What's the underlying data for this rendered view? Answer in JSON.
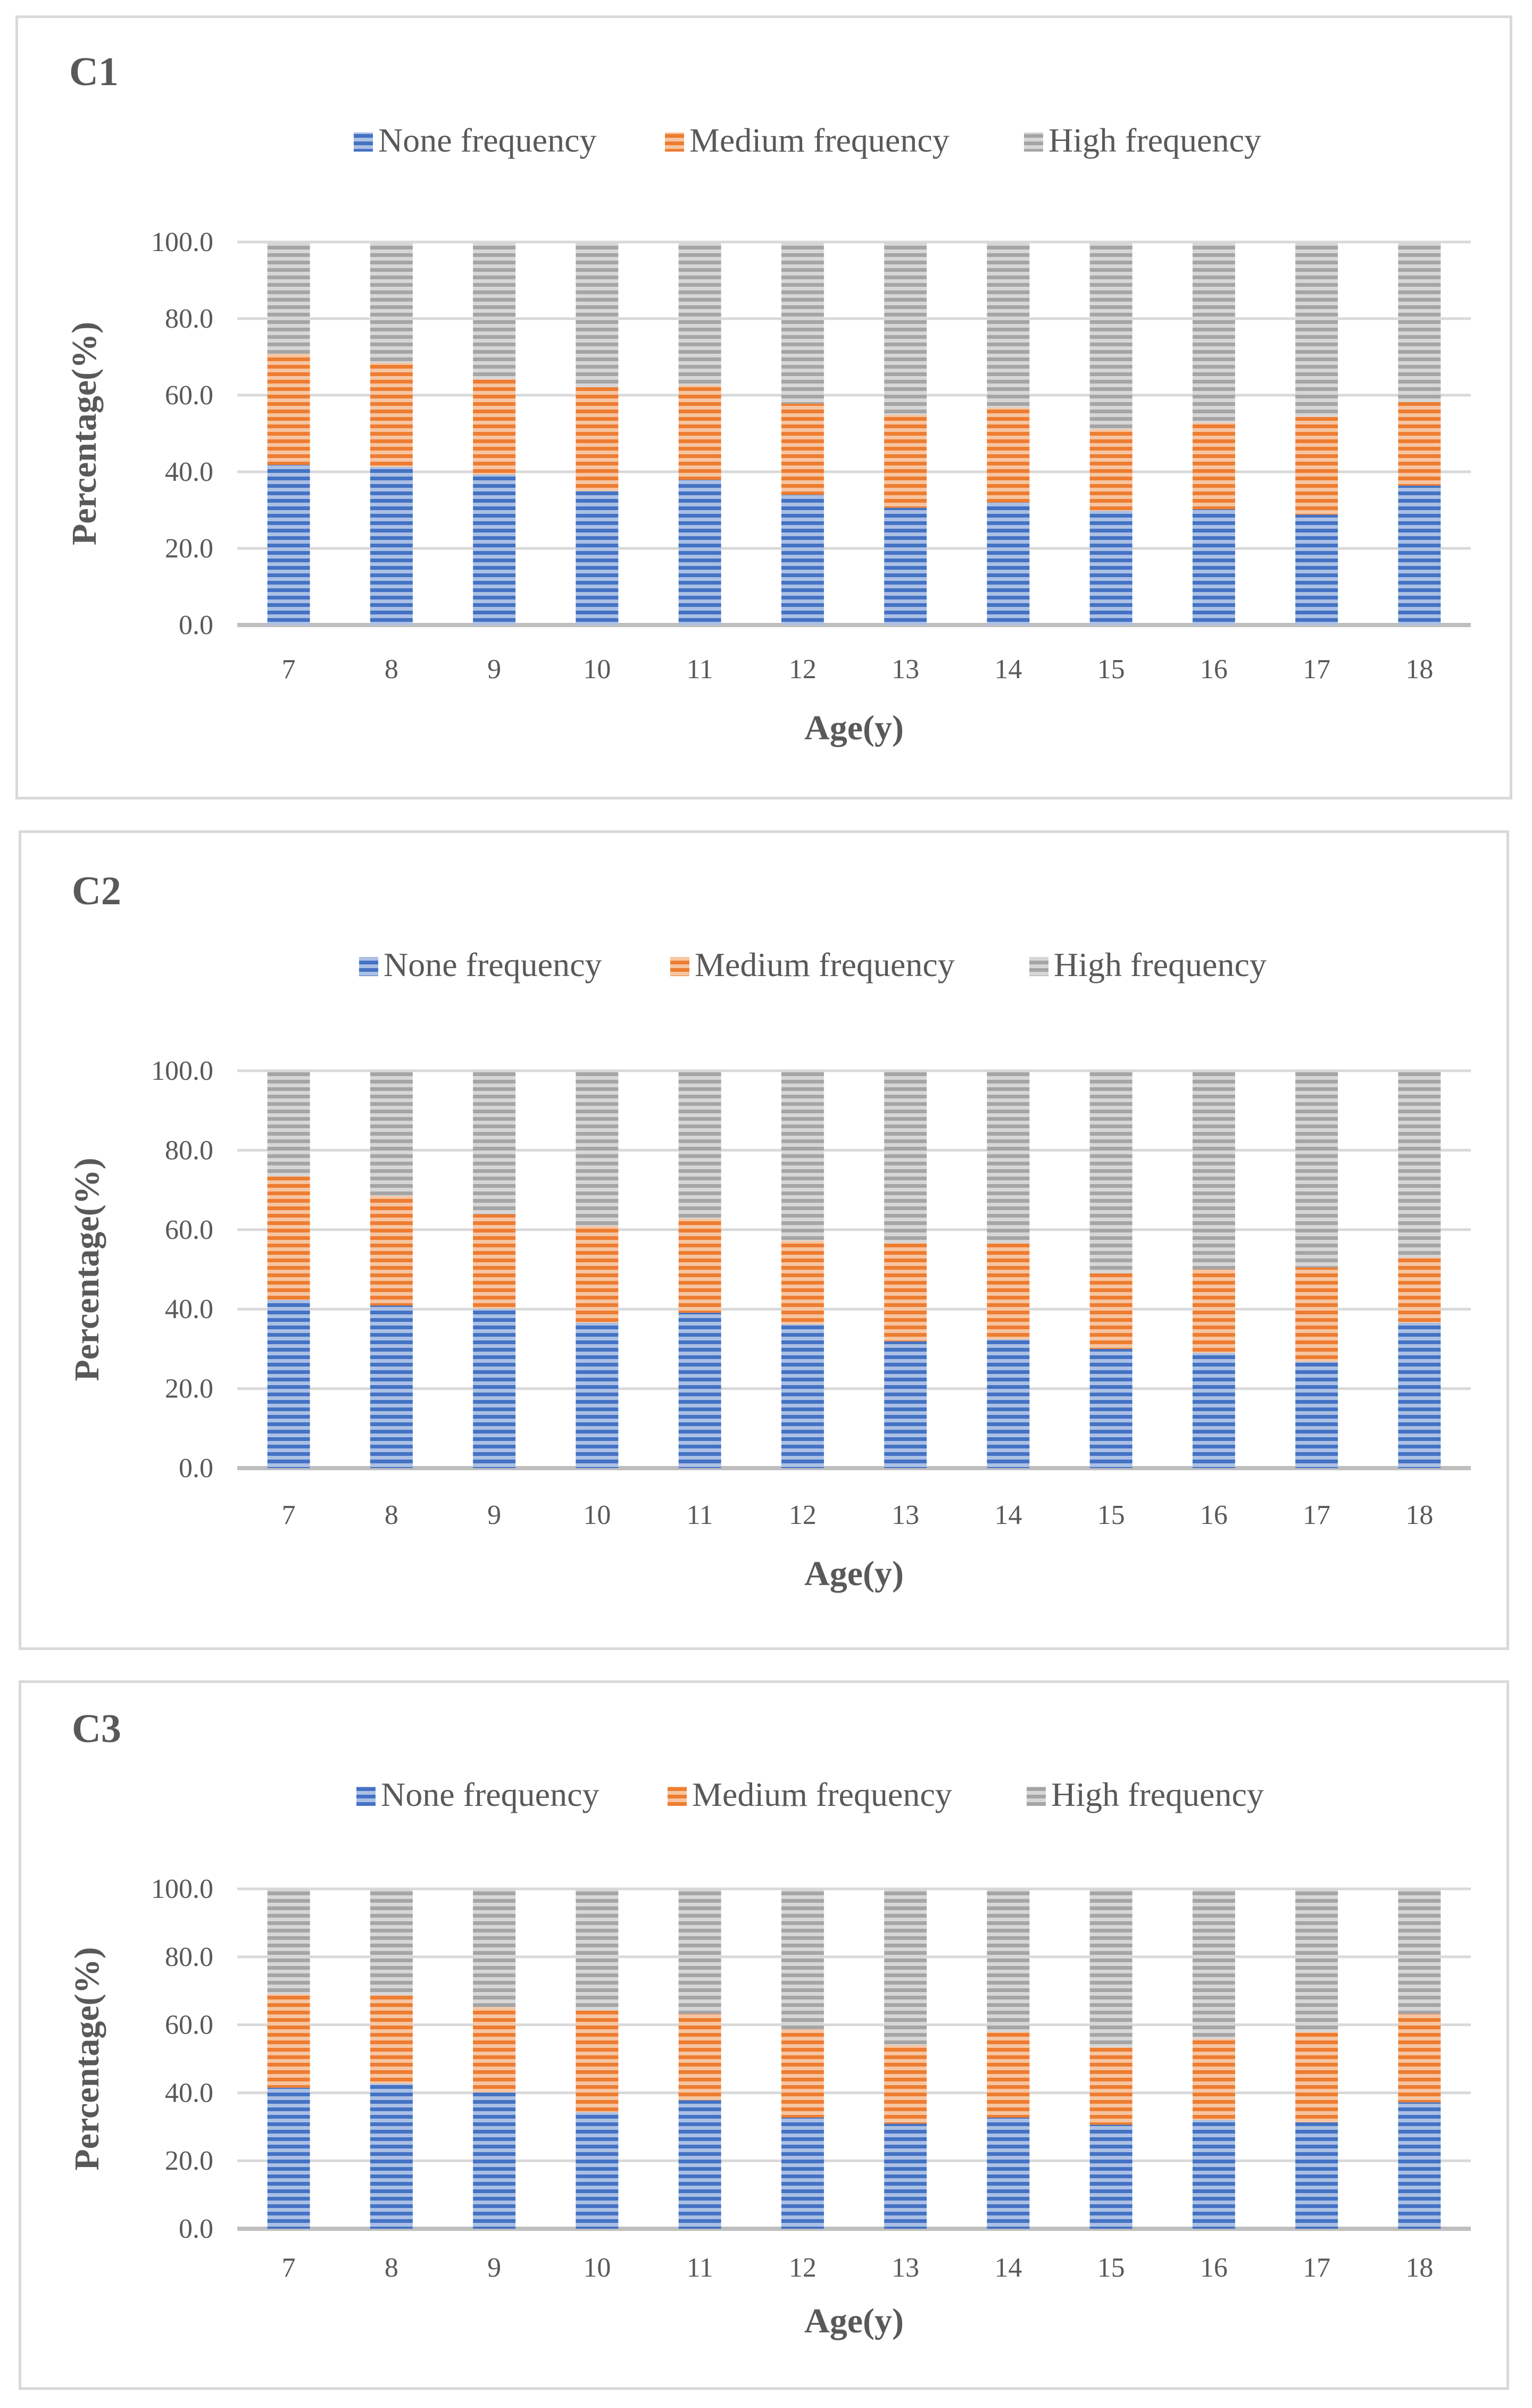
{
  "colors": {
    "none": "#4472C4",
    "medium": "#ED7D31",
    "high": "#A5A5A5"
  },
  "chart_data": [
    {
      "type": "bar",
      "stacked": true,
      "title": "C1",
      "xlabel": "Age(y)",
      "ylabel": "Percentage(%)",
      "ylim": [
        0,
        100
      ],
      "yticks": [
        "0.0",
        "20.0",
        "40.0",
        "60.0",
        "80.0",
        "100.0"
      ],
      "grid": true,
      "legend_position": "top-center",
      "categories": [
        "7",
        "8",
        "9",
        "10",
        "11",
        "12",
        "13",
        "14",
        "15",
        "16",
        "17",
        "18"
      ],
      "series": [
        {
          "name": "None frequency",
          "key": "none",
          "values": [
            41.8,
            41.3,
            39.3,
            35.0,
            37.9,
            34.0,
            30.6,
            32.0,
            29.8,
            30.2,
            28.8,
            36.4
          ]
        },
        {
          "name": "Medium frequency",
          "key": "medium",
          "values": [
            29.0,
            27.2,
            24.9,
            27.1,
            24.7,
            23.8,
            24.3,
            24.8,
            21.3,
            22.6,
            25.6,
            21.8
          ]
        },
        {
          "name": "High frequency",
          "key": "high",
          "values": [
            29.2,
            31.5,
            35.8,
            37.9,
            37.4,
            42.2,
            45.1,
            43.2,
            48.9,
            47.2,
            45.6,
            41.8
          ]
        }
      ]
    },
    {
      "type": "bar",
      "stacked": true,
      "title": "C2",
      "xlabel": "Age(y)",
      "ylabel": "Percentage(%)",
      "ylim": [
        0,
        100
      ],
      "yticks": [
        "0.0",
        "20.0",
        "40.0",
        "60.0",
        "80.0",
        "100.0"
      ],
      "grid": true,
      "legend_position": "top-center",
      "categories": [
        "7",
        "8",
        "9",
        "10",
        "11",
        "12",
        "13",
        "14",
        "15",
        "16",
        "17",
        "18"
      ],
      "series": [
        {
          "name": "None frequency",
          "key": "none",
          "values": [
            42.3,
            40.9,
            40.1,
            36.6,
            39.1,
            36.2,
            31.9,
            32.4,
            30.0,
            29.0,
            26.8,
            36.6
          ]
        },
        {
          "name": "Medium frequency",
          "key": "medium",
          "values": [
            31.1,
            27.6,
            23.8,
            24.3,
            23.7,
            21.0,
            24.7,
            24.2,
            19.0,
            21.0,
            23.7,
            16.4
          ]
        },
        {
          "name": "High frequency",
          "key": "high",
          "values": [
            26.6,
            31.5,
            36.1,
            39.1,
            37.2,
            42.8,
            43.4,
            43.4,
            51.0,
            50.0,
            49.5,
            47.0
          ]
        }
      ]
    },
    {
      "type": "bar",
      "stacked": true,
      "title": "C3",
      "xlabel": "Age(y)",
      "ylabel": "Percentage(%)",
      "ylim": [
        0,
        100
      ],
      "yticks": [
        "0.0",
        "20.0",
        "40.0",
        "60.0",
        "80.0",
        "100.0"
      ],
      "grid": true,
      "legend_position": "top-center",
      "categories": [
        "7",
        "8",
        "9",
        "10",
        "11",
        "12",
        "13",
        "14",
        "15",
        "16",
        "17",
        "18"
      ],
      "series": [
        {
          "name": "None frequency",
          "key": "none",
          "values": [
            41.5,
            42.7,
            40.1,
            34.3,
            37.8,
            32.7,
            30.9,
            32.7,
            30.6,
            32.0,
            31.3,
            37.2
          ]
        },
        {
          "name": "Medium frequency",
          "key": "medium",
          "values": [
            27.5,
            26.0,
            25.1,
            30.0,
            25.4,
            26.0,
            23.1,
            25.2,
            22.8,
            23.9,
            26.6,
            26.0
          ]
        },
        {
          "name": "High frequency",
          "key": "high",
          "values": [
            31.0,
            31.3,
            34.8,
            35.7,
            36.8,
            41.3,
            46.0,
            42.1,
            46.6,
            44.1,
            42.1,
            36.8
          ]
        }
      ]
    }
  ]
}
